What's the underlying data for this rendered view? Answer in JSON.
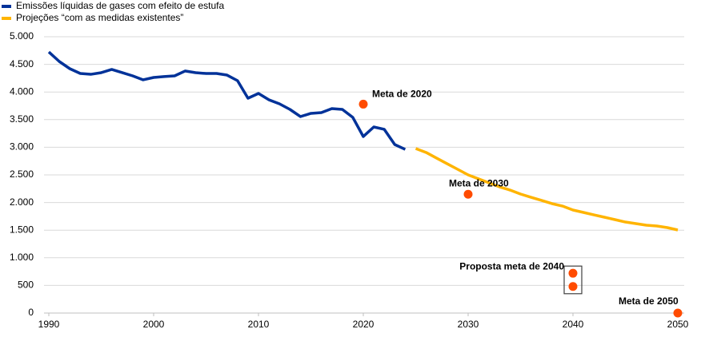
{
  "chart_data": {
    "type": "line",
    "legend": "upper left",
    "grid": true,
    "xlim": [
      1990,
      2050
    ],
    "xticks": [
      1990,
      2000,
      2010,
      2020,
      2030,
      2040,
      2050
    ],
    "ylim": [
      0,
      5000
    ],
    "yticks": [
      {
        "value": 0,
        "label": "0"
      },
      {
        "value": 500,
        "label": "500"
      },
      {
        "value": 1000,
        "label": "1.000"
      },
      {
        "value": 1500,
        "label": "1.500"
      },
      {
        "value": 2000,
        "label": "2.000"
      },
      {
        "value": 2500,
        "label": "2.500"
      },
      {
        "value": 3000,
        "label": "3.000"
      },
      {
        "value": 3500,
        "label": "3.500"
      },
      {
        "value": 4000,
        "label": "4.000"
      },
      {
        "value": 4500,
        "label": "4.500"
      },
      {
        "value": 5000,
        "label": "5.000"
      }
    ],
    "series": [
      {
        "name": "Emissões líquidas de gases com efeito de estufa",
        "color": "#003299",
        "x": [
          1990,
          1991,
          1992,
          1993,
          1994,
          1995,
          1996,
          1997,
          1998,
          1999,
          2000,
          2001,
          2002,
          2003,
          2004,
          2005,
          2006,
          2007,
          2008,
          2009,
          2010,
          2011,
          2012,
          2013,
          2014,
          2015,
          2016,
          2017,
          2018,
          2019,
          2020,
          2021,
          2022,
          2023,
          2024
        ],
        "values": [
          4725,
          4552,
          4422,
          4335,
          4320,
          4350,
          4408,
          4350,
          4292,
          4220,
          4263,
          4280,
          4292,
          4380,
          4350,
          4335,
          4335,
          4306,
          4205,
          3887,
          3974,
          3858,
          3786,
          3685,
          3555,
          3613,
          3627,
          3699,
          3685,
          3540,
          3194,
          3367,
          3324,
          3049,
          2962
        ]
      },
      {
        "name": "Projeções “com as medidas existentes”",
        "color": "#ffb400",
        "x": [
          2025,
          2026,
          2027,
          2028,
          2029,
          2030,
          2031,
          2032,
          2033,
          2034,
          2035,
          2036,
          2037,
          2038,
          2039,
          2040,
          2041,
          2042,
          2043,
          2044,
          2045,
          2046,
          2047,
          2048,
          2049,
          2050
        ],
        "values": [
          2977,
          2905,
          2803,
          2702,
          2601,
          2500,
          2428,
          2355,
          2283,
          2225,
          2153,
          2095,
          2038,
          1980,
          1936,
          1864,
          1821,
          1777,
          1734,
          1691,
          1647,
          1618,
          1590,
          1575,
          1546,
          1503
        ]
      }
    ],
    "targets": {
      "color": "#ff4b00",
      "items": [
        {
          "label": "Meta de 2020",
          "x": 2020,
          "values": [
            3780
          ]
        },
        {
          "label": "Meta de 2030",
          "x": 2030,
          "values": [
            2150
          ]
        },
        {
          "label": "Proposta meta de 2040",
          "x": 2040,
          "values": [
            720,
            480
          ]
        },
        {
          "label": "Meta de 2050",
          "x": 2050,
          "values": [
            0
          ]
        }
      ]
    }
  }
}
